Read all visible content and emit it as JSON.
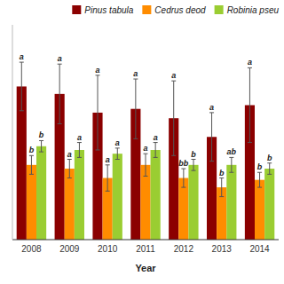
{
  "chart_data": {
    "type": "bar",
    "x_label": "Year",
    "categories": [
      "2008",
      "2009",
      "2010",
      "2011",
      "2012",
      "2013",
      "2014"
    ],
    "series": [
      {
        "name": "Pinus tabula",
        "color": "#8B0000",
        "values": [
          0.82,
          0.78,
          0.68,
          0.7,
          0.65,
          0.55,
          0.72
        ],
        "errors": [
          0.13,
          0.16,
          0.2,
          0.16,
          0.2,
          0.13,
          0.2
        ],
        "letters": [
          "a",
          "a",
          "a",
          "a",
          "a",
          "a",
          "a"
        ]
      },
      {
        "name": "Cedrus deod",
        "color": "#FF8C00",
        "values": [
          0.4,
          0.38,
          0.33,
          0.4,
          0.33,
          0.28,
          0.32
        ],
        "errors": [
          0.05,
          0.05,
          0.07,
          0.06,
          0.05,
          0.05,
          0.04
        ],
        "letters": [
          "b",
          "a",
          "a",
          "a",
          "bb",
          "b",
          "b"
        ]
      },
      {
        "name": "Robinia pseu",
        "color": "#9ACD32",
        "values": [
          0.5,
          0.48,
          0.46,
          0.48,
          0.4,
          0.4,
          0.38
        ],
        "errors": [
          0.03,
          0.04,
          0.03,
          0.04,
          0.03,
          0.04,
          0.03
        ],
        "letters": [
          "b",
          "a",
          "a",
          "a",
          "b",
          "ab",
          "b"
        ]
      }
    ],
    "ylim": [
      0,
      1.15
    ],
    "tick_labels": "x",
    "legend": "upper right"
  }
}
